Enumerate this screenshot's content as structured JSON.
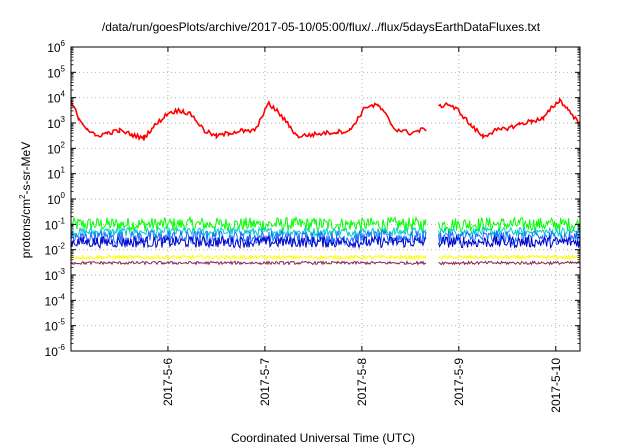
{
  "chart_data": {
    "type": "line",
    "title": "/data/run/goesPlots/archive/2017-05-10/05:00/flux/../flux/5daysEarthDataFluxes.txt",
    "xlabel": "Coordinated Universal Time (UTC)",
    "ylabel": {
      "pre": "protons/cm",
      "sup": "2",
      "post": "-s-sr-MeV"
    },
    "x_axis": {
      "type": "date",
      "range": [
        "2017-05-05T00:00",
        "2017-05-10T06:00"
      ],
      "ticks": [
        "2017-5-6",
        "2017-5-7",
        "2017-5-8",
        "2017-5-9",
        "2017-5-10"
      ],
      "tick_dates": [
        "2017-05-06",
        "2017-05-07",
        "2017-05-08",
        "2017-05-09",
        "2017-05-10"
      ]
    },
    "y_axis": {
      "scale": "log",
      "range": [
        1e-06,
        1000000.0
      ],
      "ticks": [
        {
          "base": "10",
          "exp": "-6"
        },
        {
          "base": "10",
          "exp": "-5"
        },
        {
          "base": "10",
          "exp": "-4"
        },
        {
          "base": "10",
          "exp": "-3"
        },
        {
          "base": "10",
          "exp": "-2"
        },
        {
          "base": "10",
          "exp": "-1"
        },
        {
          "base": "10",
          "exp": "0"
        },
        {
          "base": "10",
          "exp": "1"
        },
        {
          "base": "10",
          "exp": "2"
        },
        {
          "base": "10",
          "exp": "3"
        },
        {
          "base": "10",
          "exp": "4"
        },
        {
          "base": "10",
          "exp": "5"
        },
        {
          "base": "10",
          "exp": "6"
        }
      ]
    },
    "grid": true,
    "legend": "none",
    "data_gap": [
      "2017-05-08T16:00",
      "2017-05-08T19:00"
    ],
    "series": [
      {
        "color": "#ff0000",
        "x": [
          "2017-05-05T00:00",
          "2017-05-05T02:00",
          "2017-05-05T04:00",
          "2017-05-05T06:00",
          "2017-05-05T09:00",
          "2017-05-05T12:00",
          "2017-05-05T15:00",
          "2017-05-05T18:00",
          "2017-05-05T20:00",
          "2017-05-06T00:00",
          "2017-05-06T03:00",
          "2017-05-06T04:00",
          "2017-05-06T06:00",
          "2017-05-06T09:00",
          "2017-05-06T12:00",
          "2017-05-06T15:00",
          "2017-05-06T18:00",
          "2017-05-06T20:00",
          "2017-05-06T22:00",
          "2017-05-07T00:00",
          "2017-05-07T01:00",
          "2017-05-07T03:00",
          "2017-05-07T06:00",
          "2017-05-07T08:00",
          "2017-05-07T12:00",
          "2017-05-07T15:00",
          "2017-05-07T18:00",
          "2017-05-07T21:00",
          "2017-05-07T23:00",
          "2017-05-08T01:00",
          "2017-05-08T04:00",
          "2017-05-08T06:00",
          "2017-05-08T08:00",
          "2017-05-08T12:00",
          "2017-05-08T16:00",
          "2017-05-08T19:00",
          "2017-05-08T21:00",
          "2017-05-09T00:00",
          "2017-05-09T03:00",
          "2017-05-09T06:00",
          "2017-05-09T09:00",
          "2017-05-09T12:00",
          "2017-05-09T15:00",
          "2017-05-09T18:00",
          "2017-05-09T21:00",
          "2017-05-09T23:00",
          "2017-05-10T01:00",
          "2017-05-10T03:00",
          "2017-05-10T06:00"
        ],
        "values": [
          7000,
          1500,
          600,
          300,
          400,
          500,
          350,
          250,
          600,
          2500,
          3200,
          2800,
          2000,
          500,
          300,
          400,
          500,
          450,
          600,
          3500,
          5500,
          3000,
          800,
          300,
          350,
          400,
          450,
          500,
          1500,
          4500,
          5000,
          2000,
          600,
          400,
          600,
          4000,
          6000,
          3000,
          800,
          300,
          500,
          600,
          900,
          1200,
          1500,
          4000,
          8000,
          3500,
          900
        ]
      },
      {
        "color": "#00ff00",
        "x_range": [
          "2017-05-05T00:00",
          "2017-05-10T06:00"
        ],
        "baseline": 0.1
      },
      {
        "color": "#00cccc",
        "x_range": [
          "2017-05-05T00:00",
          "2017-05-10T06:00"
        ],
        "baseline": 0.05
      },
      {
        "color": "#1e6bff",
        "x_range": [
          "2017-05-05T00:00",
          "2017-05-10T06:00"
        ],
        "baseline": 0.03
      },
      {
        "color": "#0000cc",
        "x_range": [
          "2017-05-05T00:00",
          "2017-05-10T06:00"
        ],
        "baseline": 0.02
      },
      {
        "color": "#ffff00",
        "x_range": [
          "2017-05-05T00:00",
          "2017-05-10T06:00"
        ],
        "baseline": 0.005
      },
      {
        "color": "#8b2252",
        "x_range": [
          "2017-05-05T00:00",
          "2017-05-10T06:00"
        ],
        "baseline": 0.003
      }
    ]
  }
}
